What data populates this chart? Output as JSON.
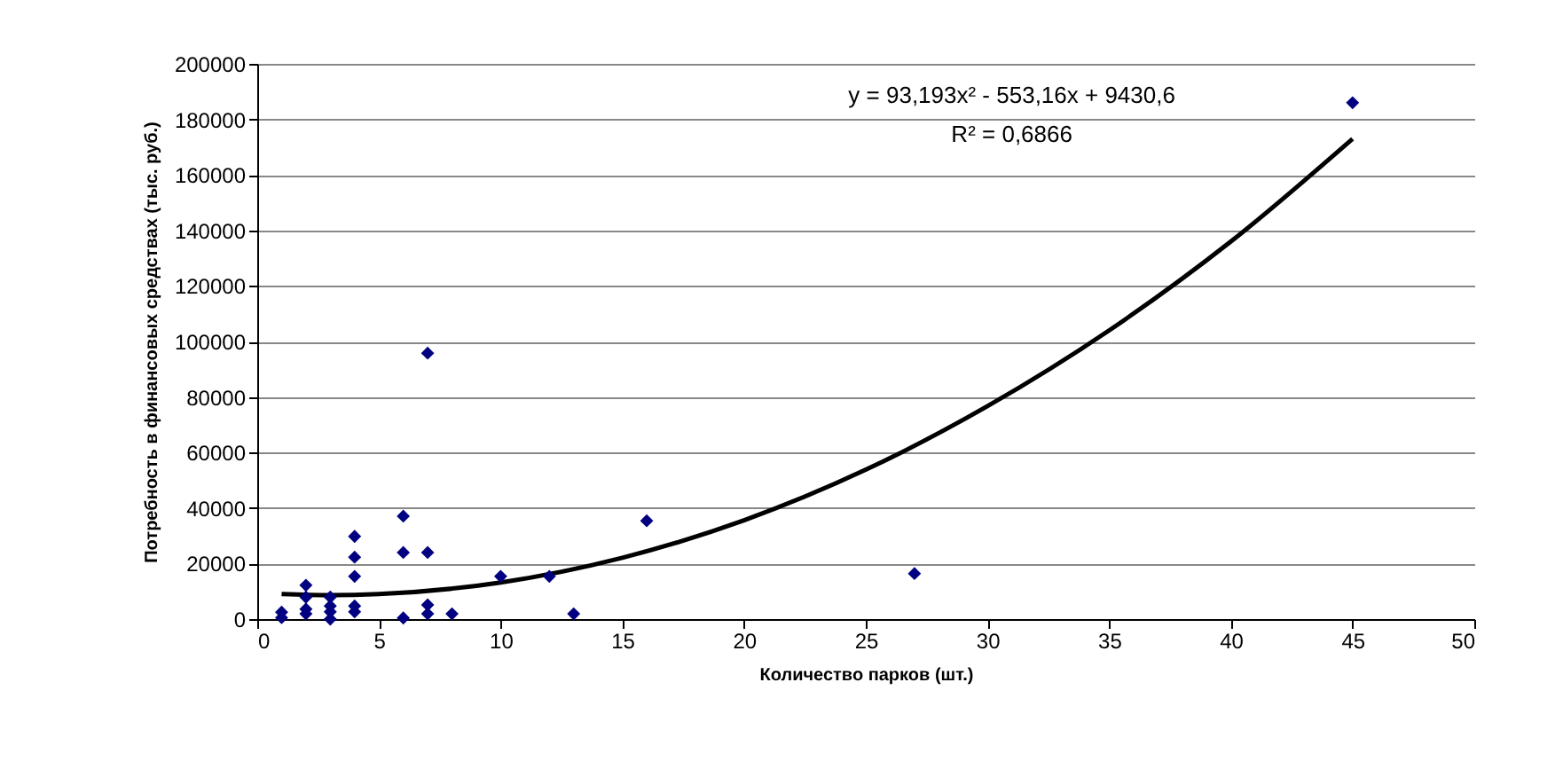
{
  "chart_data": {
    "type": "scatter",
    "xlabel": "Количество парков (шт.)",
    "ylabel": "Потребность в финансовых средствах (тыс. руб.)",
    "annotations": [
      "y = 93,193x² - 553,16x + 9430,6",
      "R² = 0,6866"
    ],
    "series": [
      {
        "color": "#000080",
        "marker": "diamond",
        "x": [
          1,
          1,
          2,
          2,
          2,
          2,
          3,
          3,
          3,
          3,
          4,
          4,
          4,
          4,
          4,
          6,
          6,
          6,
          7,
          7,
          7,
          7,
          8,
          10,
          12,
          13,
          16,
          27,
          45
        ],
        "values": [
          500,
          2500,
          12200,
          7900,
          3600,
          1900,
          7900,
          4700,
          2600,
          0,
          29800,
          22300,
          15400,
          4700,
          2600,
          37100,
          24000,
          400,
          95800,
          24000,
          5100,
          1900,
          1900,
          15400,
          15400,
          1900,
          35400,
          16400,
          186000
        ]
      },
      {
        "type": "line",
        "color": "#000000",
        "line_style": "solid",
        "marker": "none",
        "x": [
          1,
          3,
          5,
          10,
          15,
          20,
          25,
          30,
          35,
          40,
          45
        ],
        "values": [
          9000,
          8600,
          9000,
          13200,
          22100,
          35600,
          53800,
          76700,
          104000,
          136000,
          173000
        ]
      }
    ],
    "xlim": [
      0,
      50
    ],
    "xticks": [
      0,
      5,
      10,
      15,
      20,
      25,
      30,
      35,
      40,
      45,
      50
    ],
    "ylim": [
      0,
      200000
    ],
    "yticks": [
      0,
      20000,
      40000,
      60000,
      80000,
      100000,
      120000,
      140000,
      160000,
      180000,
      200000
    ],
    "grid": "y"
  }
}
